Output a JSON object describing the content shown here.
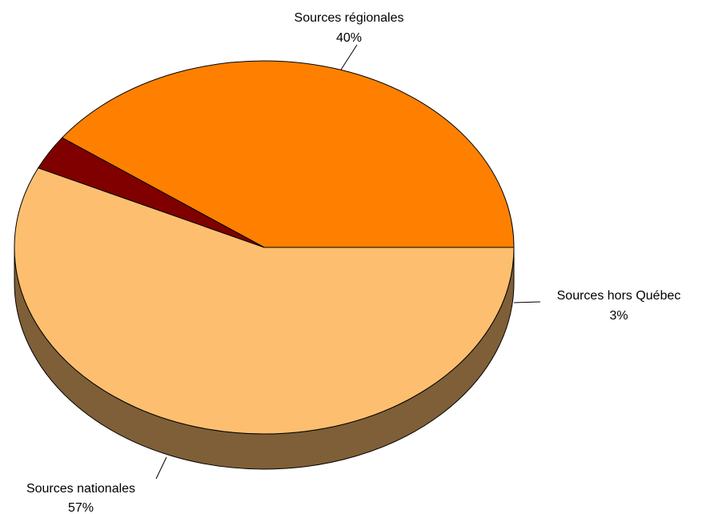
{
  "chart_data": {
    "type": "pie",
    "style": "3d",
    "title": "",
    "slices": [
      {
        "label": "Sources régionales",
        "value": 40,
        "value_label": "40%",
        "color": "#FF8000",
        "side_color": "#B35A00"
      },
      {
        "label": "Sources hors Québec",
        "value": 3,
        "value_label": "3%",
        "color": "#800000",
        "side_color": "#4D0000"
      },
      {
        "label": "Sources nationales",
        "value": 57,
        "value_label": "57%",
        "color": "#FDBF6F",
        "side_color": "#7F5F37"
      }
    ],
    "legend": "none"
  }
}
